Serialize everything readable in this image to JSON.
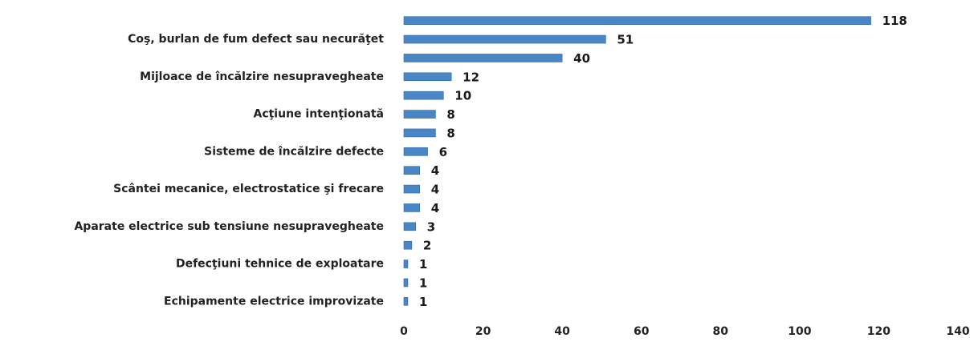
{
  "chart_data": {
    "type": "bar",
    "orientation": "horizontal",
    "categories": [
      null,
      "Coş, burlan de fum  defect sau necurăţet",
      null,
      "Mijloace de încălzire nesupravegheate",
      null,
      "Acţiune intenţionată",
      null,
      "Sisteme de încălzire defecte",
      null,
      "Scântei mecanice, electrostatice şi frecare",
      null,
      "Aparate electrice sub tensiune nesupravegheate",
      null,
      "Defecţiuni tehnice de exploatare",
      null,
      "Echipamente electrice improvizate"
    ],
    "values": [
      118,
      51,
      40,
      12,
      10,
      8,
      8,
      6,
      4,
      4,
      4,
      3,
      2,
      1,
      1,
      1
    ],
    "color": "#4a86c5",
    "xlim": [
      0,
      140
    ],
    "xticks": [
      0,
      20,
      40,
      60,
      80,
      100,
      120,
      140
    ],
    "grid": false
  }
}
